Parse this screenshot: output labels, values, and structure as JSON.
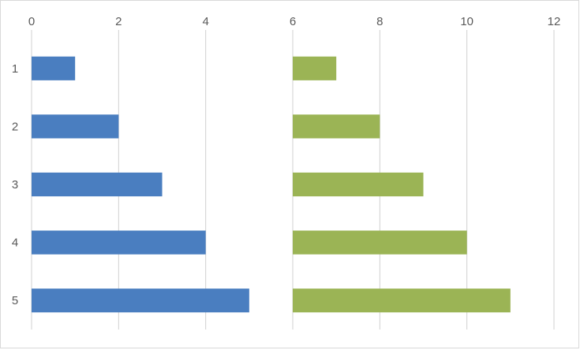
{
  "chart_data": {
    "type": "bar",
    "orientation": "horizontal",
    "stacked": true,
    "x_ticks": [
      "0",
      "2",
      "4",
      "6",
      "8",
      "10",
      "12"
    ],
    "xlim": [
      0,
      12
    ],
    "categories": [
      "1",
      "2",
      "3",
      "4",
      "5"
    ],
    "series": [
      {
        "offset": 0,
        "values": [
          1,
          2,
          3,
          4,
          5
        ],
        "color": "#4a7ec0"
      },
      {
        "offset": 6,
        "values": [
          1,
          2,
          3,
          4,
          5
        ],
        "color": "#9bb455"
      }
    ],
    "grid": true,
    "legend": "none",
    "x_axis_position": "top"
  }
}
